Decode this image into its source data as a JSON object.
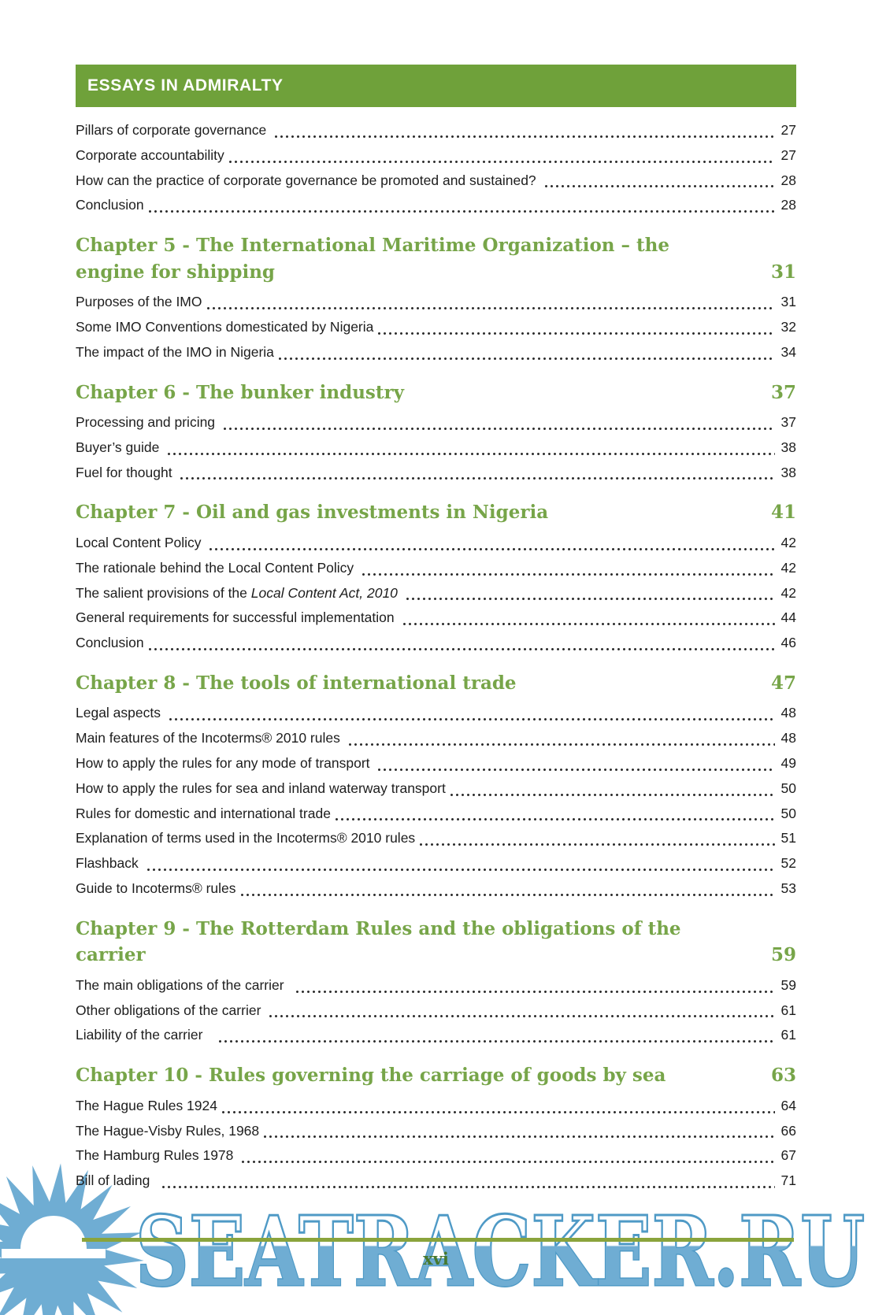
{
  "header": {
    "title": "ESSAYS IN ADMIRALTY"
  },
  "footer": {
    "page_number": "xvi"
  },
  "watermark": {
    "text": "SEATRACKER.RU",
    "logo": "starburst-sun-icon"
  },
  "colors": {
    "header_bg": "#6fa13a",
    "chapter_green": "#77a549",
    "rule_green": "#8aa43c",
    "folio_green": "#47792f",
    "text_black": "#1d1d1d",
    "watermark_blue": "#6fadd3",
    "watermark_stroke": "#4f9ac6"
  },
  "toc": {
    "intro_rows": [
      {
        "label": "Pillars of corporate governance ",
        "page": "27"
      },
      {
        "label": "Corporate accountability",
        "page": "27"
      },
      {
        "label": "How can the practice of corporate governance be promoted and sustained? ",
        "page": "28"
      },
      {
        "label": "Conclusion",
        "page": "28"
      }
    ],
    "chapters": [
      {
        "title": "Chapter 5 - The International Maritime Organization – the engine for shipping",
        "page": "31",
        "rows": [
          {
            "label": "Purposes of the IMO",
            "page": "31"
          },
          {
            "label": "Some IMO Conventions domesticated by Nigeria",
            "page": "32"
          },
          {
            "label": "The impact of the IMO in Nigeria",
            "page": "34"
          }
        ]
      },
      {
        "title": "Chapter 6 - The bunker industry",
        "page": "37",
        "rows": [
          {
            "label": "Processing and pricing ",
            "page": "37"
          },
          {
            "label": "Buyer’s guide ",
            "page": "38"
          },
          {
            "label": "Fuel for thought ",
            "page": "38"
          }
        ]
      },
      {
        "title": "Chapter 7 - Oil and gas investments in Nigeria",
        "page": "41",
        "rows": [
          {
            "label": "Local Content Policy ",
            "page": "42"
          },
          {
            "label": "The rationale behind the Local Content Policy ",
            "page": "42"
          },
          {
            "label": "The salient provisions of the ",
            "italic": "Local Content Act, 2010",
            "suffix": " ",
            "page": "42"
          },
          {
            "label": "General requirements for successful implementation ",
            "page": "44"
          },
          {
            "label": "Conclusion",
            "page": "46"
          }
        ]
      },
      {
        "title": "Chapter 8 - The tools of international trade",
        "page": "47",
        "rows": [
          {
            "label": "Legal aspects ",
            "page": "48"
          },
          {
            "label": "Main features of the Incoterms® 2010 rules ",
            "page": "48"
          },
          {
            "label": "How to apply the rules for any mode of transport ",
            "page": "49"
          },
          {
            "label": "How to apply the rules for sea and inland waterway transport",
            "page": "50"
          },
          {
            "label": "Rules for domestic and international trade",
            "page": "50"
          },
          {
            "label": "Explanation of terms used in the Incoterms® 2010 rules",
            "page": "51"
          },
          {
            "label": "Flashback ",
            "page": "52"
          },
          {
            "label": "Guide to Incoterms® rules",
            "page": "53"
          }
        ]
      },
      {
        "title": "Chapter 9 - The Rotterdam Rules and the obligations of the carrier",
        "page": "59",
        "rows": [
          {
            "label": "The main obligations of the carrier  ",
            "page": "59"
          },
          {
            "label": "Other obligations of the carrier ",
            "page": "61"
          },
          {
            "label": "Liability of the carrier   ",
            "page": "61"
          }
        ]
      },
      {
        "title": "Chapter 10 - Rules governing the carriage of goods by sea",
        "page": "63",
        "rows": [
          {
            "label": "The Hague Rules 1924",
            "page": "64"
          },
          {
            "label": "The Hague-Visby Rules, 1968",
            "page": "66"
          },
          {
            "label": "The Hamburg Rules 1978 ",
            "page": "67"
          },
          {
            "label": "Bill of lading  ",
            "page": "71"
          }
        ]
      }
    ]
  }
}
